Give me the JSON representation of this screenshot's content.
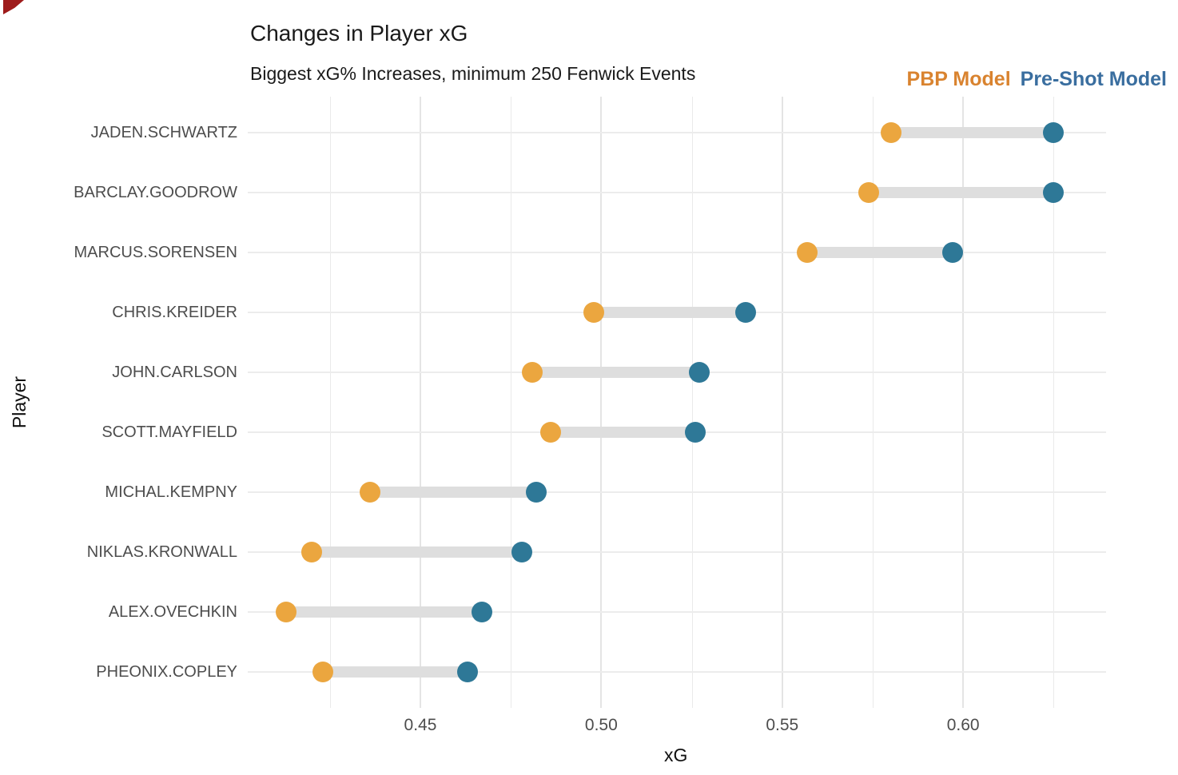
{
  "header": {
    "title": "Changes in Player xG",
    "subtitle": "Biggest xG% Increases, minimum 250 Fenwick Events"
  },
  "legend": {
    "pbp_label": "PBP Model",
    "preshot_label": "Pre-Shot Model"
  },
  "colors": {
    "pbp_dot": "#EBA63F",
    "preshot_dot": "#2E7897",
    "pbp_legend_text": "#D9832F",
    "preshot_legend_text": "#3A6E9F",
    "connector": "#DEDEDE",
    "corner_mark": "#9E1B1B"
  },
  "chart_data": {
    "type": "scatter",
    "subtype": "dumbbell",
    "title": "Changes in Player xG",
    "subtitle": "Biggest xG% Increases, minimum 250 Fenwick Events",
    "xlabel": "xG",
    "ylabel": "Player",
    "legend_position": "top-right",
    "grid": "on",
    "xlim": [
      0.4023,
      0.6395
    ],
    "x_ticks_major": [
      0.45,
      0.5,
      0.55,
      0.6
    ],
    "x_tick_labels": [
      "0.45",
      "0.50",
      "0.55",
      "0.60"
    ],
    "x_ticks_minor": [
      0.425,
      0.475,
      0.525,
      0.575,
      0.625
    ],
    "categories": [
      "JADEN.SCHWARTZ",
      "BARCLAY.GOODROW",
      "MARCUS.SORENSEN",
      "CHRIS.KREIDER",
      "JOHN.CARLSON",
      "SCOTT.MAYFIELD",
      "MICHAL.KEMPNY",
      "NIKLAS.KRONWALL",
      "ALEX.OVECHKIN",
      "PHEONIX.COPLEY"
    ],
    "series": [
      {
        "name": "PBP Model",
        "color": "#EBA63F",
        "values": [
          0.58,
          0.574,
          0.557,
          0.498,
          0.481,
          0.486,
          0.436,
          0.42,
          0.413,
          0.423
        ]
      },
      {
        "name": "Pre-Shot Model",
        "color": "#2E7897",
        "values": [
          0.625,
          0.625,
          0.597,
          0.54,
          0.527,
          0.526,
          0.482,
          0.478,
          0.467,
          0.463
        ]
      }
    ]
  }
}
